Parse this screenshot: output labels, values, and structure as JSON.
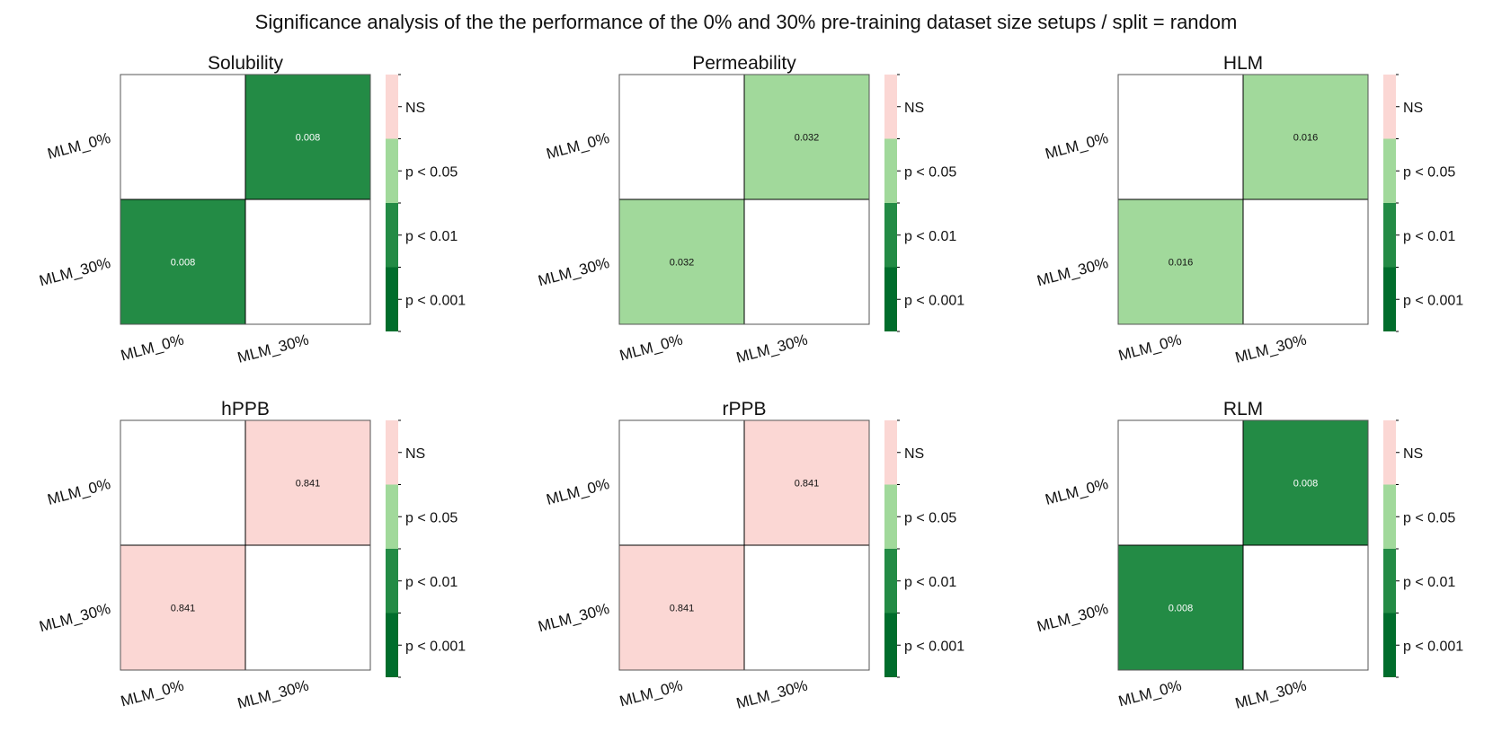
{
  "title": "Significance analysis of the the performance of the 0% and 30% pre-training dataset size setups / split = random",
  "colors": {
    "ns": "#fbd7d4",
    "p05": "#a1d99b",
    "p01": "#238b45",
    "p001": "#006d2c",
    "diag": "#ffffff",
    "frame": "#000000"
  },
  "legend": [
    {
      "label": "NS",
      "color_key": "ns"
    },
    {
      "label": "p < 0.05",
      "color_key": "p05"
    },
    {
      "label": "p < 0.01",
      "color_key": "p01"
    },
    {
      "label": "p < 0.001",
      "color_key": "p001"
    }
  ],
  "chart_data": [
    {
      "type": "heatmap",
      "title": "Solubility",
      "rows": [
        "MLM_0%",
        "MLM_30%"
      ],
      "cols": [
        "MLM_0%",
        "MLM_30%"
      ],
      "cells": [
        [
          null,
          "0.008"
        ],
        [
          "0.008",
          null
        ]
      ],
      "categories": [
        [
          null,
          "p01"
        ],
        [
          "p01",
          null
        ]
      ]
    },
    {
      "type": "heatmap",
      "title": "Permeability",
      "rows": [
        "MLM_0%",
        "MLM_30%"
      ],
      "cols": [
        "MLM_0%",
        "MLM_30%"
      ],
      "cells": [
        [
          null,
          "0.032"
        ],
        [
          "0.032",
          null
        ]
      ],
      "categories": [
        [
          null,
          "p05"
        ],
        [
          "p05",
          null
        ]
      ]
    },
    {
      "type": "heatmap",
      "title": "HLM",
      "rows": [
        "MLM_0%",
        "MLM_30%"
      ],
      "cols": [
        "MLM_0%",
        "MLM_30%"
      ],
      "cells": [
        [
          null,
          "0.016"
        ],
        [
          "0.016",
          null
        ]
      ],
      "categories": [
        [
          null,
          "p05"
        ],
        [
          "p05",
          null
        ]
      ]
    },
    {
      "type": "heatmap",
      "title": "hPPB",
      "rows": [
        "MLM_0%",
        "MLM_30%"
      ],
      "cols": [
        "MLM_0%",
        "MLM_30%"
      ],
      "cells": [
        [
          null,
          "0.841"
        ],
        [
          "0.841",
          null
        ]
      ],
      "categories": [
        [
          null,
          "ns"
        ],
        [
          "ns",
          null
        ]
      ]
    },
    {
      "type": "heatmap",
      "title": "rPPB",
      "rows": [
        "MLM_0%",
        "MLM_30%"
      ],
      "cols": [
        "MLM_0%",
        "MLM_30%"
      ],
      "cells": [
        [
          null,
          "0.841"
        ],
        [
          "0.841",
          null
        ]
      ],
      "categories": [
        [
          null,
          "ns"
        ],
        [
          "ns",
          null
        ]
      ]
    },
    {
      "type": "heatmap",
      "title": "RLM",
      "rows": [
        "MLM_0%",
        "MLM_30%"
      ],
      "cols": [
        "MLM_0%",
        "MLM_30%"
      ],
      "cells": [
        [
          null,
          "0.008"
        ],
        [
          "0.008",
          null
        ]
      ],
      "categories": [
        [
          null,
          "p01"
        ],
        [
          "p01",
          null
        ]
      ]
    }
  ]
}
